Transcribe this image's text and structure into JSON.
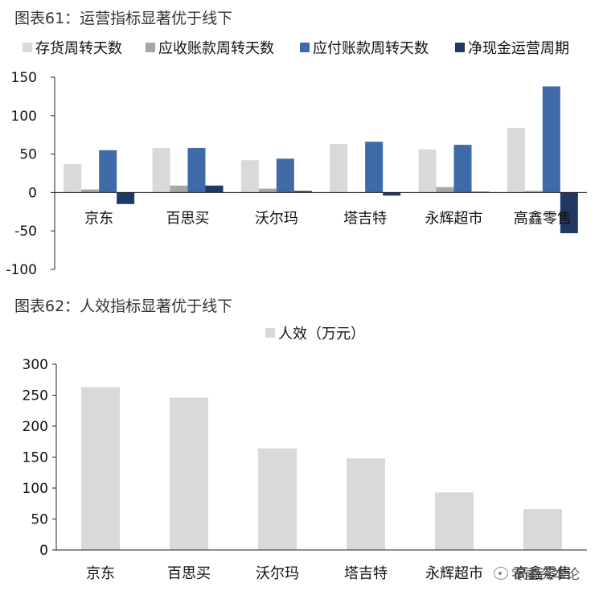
{
  "chart_data": [
    {
      "type": "bar",
      "title": "图表61：运营指标显著优于线下",
      "categories": [
        "京东",
        "百思买",
        "沃尔玛",
        "塔吉特",
        "永辉超市",
        "高鑫零售"
      ],
      "series": [
        {
          "name": "存货周转天数",
          "color": "#d9d9d9",
          "values": [
            37,
            58,
            42,
            63,
            56,
            84
          ]
        },
        {
          "name": "应收账款周转天数",
          "color": "#a6a6a6",
          "values": [
            4,
            9,
            5,
            0,
            7,
            2
          ]
        },
        {
          "name": "应付账款周转天数",
          "color": "#3e6aa8",
          "values": [
            55,
            58,
            44,
            66,
            62,
            138
          ]
        },
        {
          "name": "净现金运营周期",
          "color": "#1f3864",
          "values": [
            -15,
            9,
            2,
            -4,
            1,
            -53
          ]
        }
      ],
      "yticks": [
        150,
        100,
        50,
        0,
        -50,
        -100
      ],
      "ytick_labels": [
        "150",
        "100",
        "50",
        "0",
        "-50",
        "-100"
      ],
      "ylim": [
        -100,
        150
      ],
      "legend_position": "top",
      "grid": false
    },
    {
      "type": "bar",
      "title": "图表62：人效指标显著优于线下",
      "categories": [
        "京东",
        "百思买",
        "沃尔玛",
        "塔吉特",
        "永辉超市",
        "高鑫零售"
      ],
      "series": [
        {
          "name": "人效（万元）",
          "color": "#d9d9d9",
          "values": [
            263,
            246,
            164,
            148,
            93,
            66
          ]
        }
      ],
      "yticks": [
        300,
        250,
        200,
        150,
        100,
        50,
        0
      ],
      "ytick_labels": [
        "300",
        "250",
        "200",
        "150",
        "100",
        "50",
        "0"
      ],
      "ylim": [
        0,
        300
      ],
      "legend_position": "top",
      "grid": false
    }
  ],
  "watermark": "零壹资本论"
}
